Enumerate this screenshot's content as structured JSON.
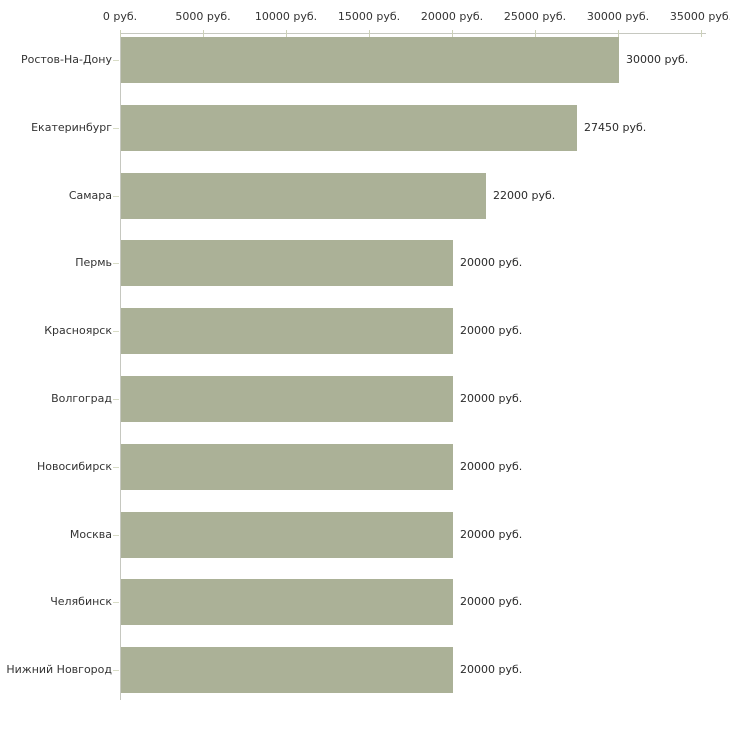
{
  "chart_data": {
    "type": "bar",
    "orientation": "horizontal",
    "title": "",
    "xlabel": "",
    "ylabel": "",
    "x_unit": "руб.",
    "xlim": [
      0,
      35000
    ],
    "grid": false,
    "legend": "none",
    "categories": [
      "Ростов-На-Дону",
      "Екатеринбург",
      "Самара",
      "Пермь",
      "Красноярск",
      "Волгоград",
      "Новосибирск",
      "Москва",
      "Челябинск",
      "Нижний Новгород"
    ],
    "values": [
      30000,
      27450,
      22000,
      20000,
      20000,
      20000,
      20000,
      20000,
      20000,
      20000
    ],
    "value_labels": [
      "30000 руб.",
      "27450 руб.",
      "22000 руб.",
      "20000 руб.",
      "20000 руб.",
      "20000 руб.",
      "20000 руб.",
      "20000 руб.",
      "20000 руб.",
      "20000 руб."
    ],
    "x_ticks": [
      {
        "value": 0,
        "label": "0 руб."
      },
      {
        "value": 5000,
        "label": "5000 руб."
      },
      {
        "value": 10000,
        "label": "10000 руб."
      },
      {
        "value": 15000,
        "label": "15000 руб."
      },
      {
        "value": 20000,
        "label": "20000 руб."
      },
      {
        "value": 25000,
        "label": "25000 руб."
      },
      {
        "value": 30000,
        "label": "30000 руб."
      },
      {
        "value": 35000,
        "label": "35000 руб."
      }
    ],
    "colors": {
      "bar": "#abb197",
      "axis_line": "#c6c8c0",
      "axis_tick": "#ccd1b8",
      "category_tick": "#d8dcc6",
      "text": "#333333",
      "background": "#ffffff"
    }
  }
}
